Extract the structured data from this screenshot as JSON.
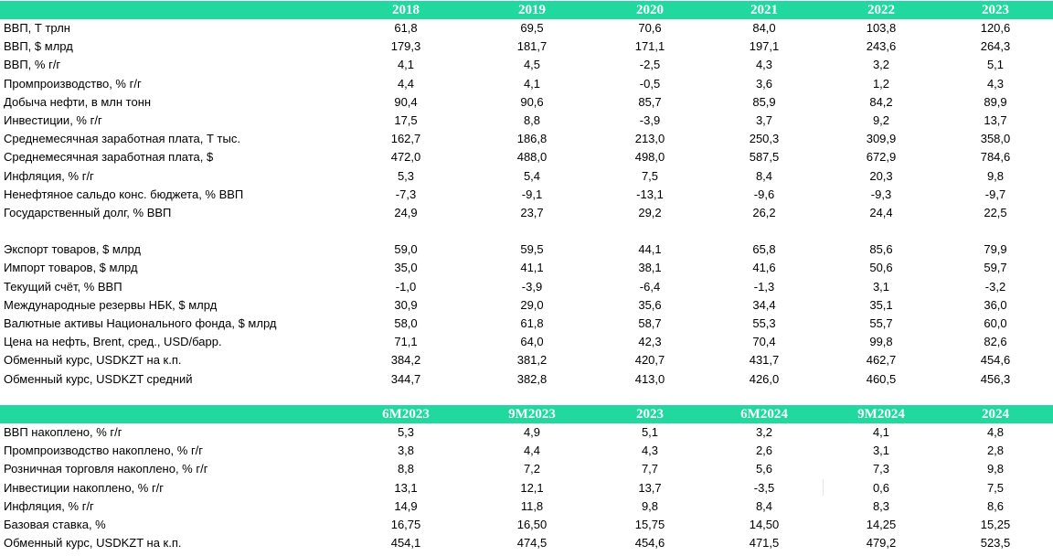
{
  "colors": {
    "accent": "#21d99f"
  },
  "annual": {
    "headers": [
      "2018",
      "2019",
      "2020",
      "2021",
      "2022",
      "2023"
    ],
    "rows": [
      {
        "label": "ВВП, Т трлн",
        "values": [
          "61,8",
          "69,5",
          "70,6",
          "84,0",
          "103,8",
          "120,6"
        ]
      },
      {
        "label": "ВВП, $ млрд",
        "values": [
          "179,3",
          "181,7",
          "171,1",
          "197,1",
          "243,6",
          "264,3"
        ]
      },
      {
        "label": "ВВП, % г/г",
        "values": [
          "4,1",
          "4,5",
          "-2,5",
          "4,3",
          "3,2",
          "5,1"
        ]
      },
      {
        "label": "Промпроизводство, % г/г",
        "values": [
          "4,4",
          "4,1",
          "-0,5",
          "3,6",
          "1,2",
          "4,3"
        ]
      },
      {
        "label": "Добыча нефти, в млн тонн",
        "values": [
          "90,4",
          "90,6",
          "85,7",
          "85,9",
          "84,2",
          "89,9"
        ]
      },
      {
        "label": "Инвестиции, % г/г",
        "values": [
          "17,5",
          "8,8",
          "-3,9",
          "3,7",
          "9,2",
          "13,7"
        ]
      },
      {
        "label": "Среднемесячная заработная плата, Т тыс.",
        "values": [
          "162,7",
          "186,8",
          "213,0",
          "250,3",
          "309,9",
          "358,0"
        ]
      },
      {
        "label": "Среднемесячная заработная плата, $",
        "values": [
          "472,0",
          "488,0",
          "498,0",
          "587,5",
          "672,9",
          "784,6"
        ]
      },
      {
        "label": "Инфляция, % г/г",
        "values": [
          "5,3",
          "5,4",
          "7,5",
          "8,4",
          "20,3",
          "9,8"
        ]
      },
      {
        "label": "Ненефтяное сальдо конс. бюджета, % ВВП",
        "values": [
          "-7,3",
          "-9,1",
          "-13,1",
          "-9,6",
          "-9,3",
          "-9,7"
        ]
      },
      {
        "label": "Государственный долг, % ВВП",
        "values": [
          "24,9",
          "23,7",
          "29,2",
          "26,2",
          "24,4",
          "22,5"
        ]
      },
      {
        "label": "Экспорт товаров, $ млрд",
        "values": [
          "59,0",
          "59,5",
          "44,1",
          "65,8",
          "85,6",
          "79,9"
        ]
      },
      {
        "label": "Импорт товаров, $ млрд",
        "values": [
          "35,0",
          "41,1",
          "38,1",
          "41,6",
          "50,6",
          "59,7"
        ]
      },
      {
        "label": "Текущий счёт, % ВВП",
        "values": [
          "-1,0",
          "-3,9",
          "-6,4",
          "-1,3",
          "3,1",
          "-3,2"
        ]
      },
      {
        "label": "Международные резервы НБК, $ млрд",
        "values": [
          "30,9",
          "29,0",
          "35,6",
          "34,4",
          "35,1",
          "36,0"
        ]
      },
      {
        "label": "Валютные активы Национального фонда, $ млрд",
        "values": [
          "58,0",
          "61,8",
          "58,7",
          "55,3",
          "55,7",
          "60,0"
        ]
      },
      {
        "label": "Цена на нефть, Brent, сред., USD/барр.",
        "values": [
          "71,1",
          "64,0",
          "42,3",
          "70,4",
          "99,8",
          "82,6"
        ]
      },
      {
        "label": "Обменный курс, USDKZT на к.п.",
        "values": [
          "384,2",
          "381,2",
          "420,7",
          "431,7",
          "462,7",
          "454,6"
        ]
      },
      {
        "label": "Обменный курс, USDKZT средний",
        "values": [
          "344,7",
          "382,8",
          "413,0",
          "426,0",
          "460,5",
          "456,3"
        ]
      }
    ]
  },
  "periodic": {
    "headers": [
      "6М2023",
      "9М2023",
      "2023",
      "6М2024",
      "9М2024",
      "2024"
    ],
    "rows": [
      {
        "label": "ВВП накоплено, % г/г",
        "values": [
          "5,3",
          "4,9",
          "5,1",
          "3,2",
          "4,1",
          "4,8"
        ]
      },
      {
        "label": "Промпроизводство накоплено, % г/г",
        "values": [
          "3,8",
          "4,4",
          "4,3",
          "2,6",
          "3,1",
          "2,8"
        ]
      },
      {
        "label": "Розничная торговля накоплено, % г/г",
        "values": [
          "8,8",
          "7,2",
          "7,7",
          "5,6",
          "7,3",
          "9,8"
        ]
      },
      {
        "label": "Инвестиции накоплено, % г/г",
        "values": [
          "13,1",
          "12,1",
          "13,7",
          "-3,5",
          "0,6",
          "7,5"
        ]
      },
      {
        "label": "Инфляция, % г/г",
        "values": [
          "14,9",
          "11,8",
          "9,8",
          "8,4",
          "8,3",
          "8,6"
        ]
      },
      {
        "label": "Базовая ставка, %",
        "values": [
          "16,75",
          "16,50",
          "15,75",
          "14,50",
          "14,25",
          "15,25"
        ]
      },
      {
        "label": "Обменный курс, USDKZT на к.п.",
        "values": [
          "454,1",
          "474,5",
          "454,6",
          "471,5",
          "479,2",
          "523,5"
        ]
      }
    ]
  }
}
